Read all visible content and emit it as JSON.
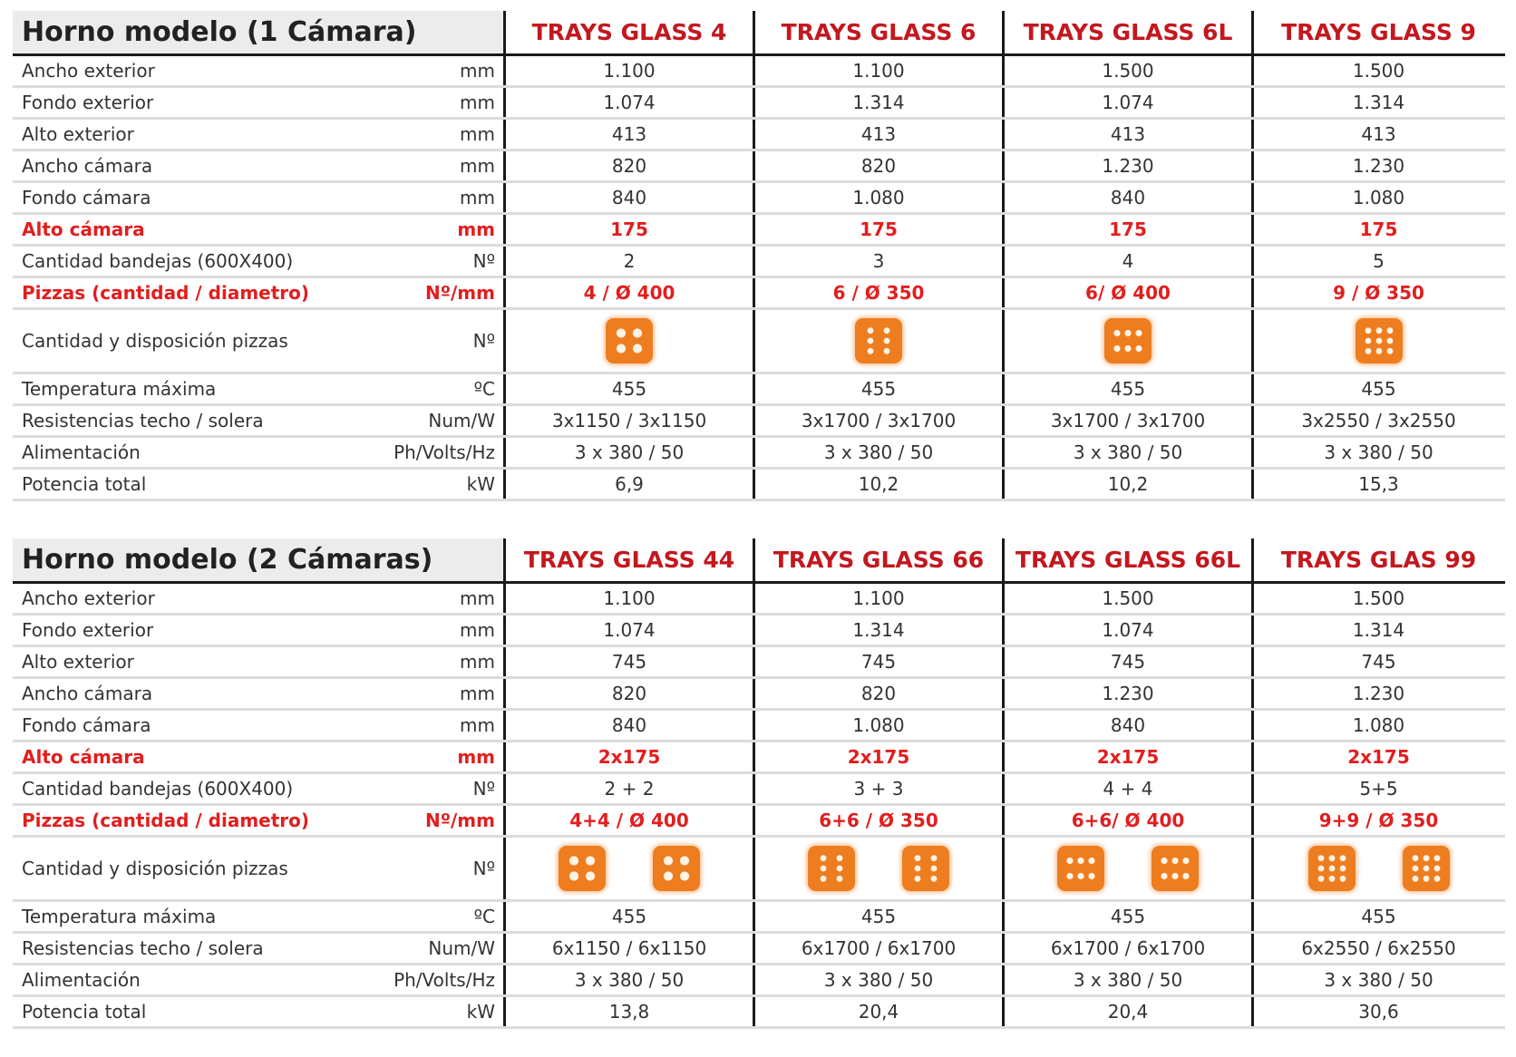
{
  "table1": {
    "title": "Horno modelo (1 Cámara)",
    "models": [
      "TRAYS GLASS 4",
      "TRAYS GLASS 6",
      "TRAYS GLASS 6L",
      "TRAYS GLASS 9"
    ],
    "rows": [
      {
        "label": "Ancho exterior",
        "unit": "mm",
        "values": [
          "1.100",
          "1.100",
          "1.500",
          "1.500"
        ]
      },
      {
        "label": "Fondo exterior",
        "unit": "mm",
        "values": [
          "1.074",
          "1.314",
          "1.074",
          "1.314"
        ]
      },
      {
        "label": "Alto exterior",
        "unit": "mm",
        "values": [
          "413",
          "413",
          "413",
          "413"
        ]
      },
      {
        "label": "Ancho cámara",
        "unit": "mm",
        "values": [
          "820",
          "820",
          "1.230",
          "1.230"
        ]
      },
      {
        "label": "Fondo cámara",
        "unit": "mm",
        "values": [
          "840",
          "1.080",
          "840",
          "1.080"
        ]
      },
      {
        "label": "Alto cámara",
        "unit": "mm",
        "values": [
          "175",
          "175",
          "175",
          "175"
        ]
      },
      {
        "label": "Cantidad bandejas (600X400)",
        "unit": "Nº",
        "values": [
          "2",
          "3",
          "4",
          "5"
        ]
      },
      {
        "label": "Pizzas (cantidad / diametro)",
        "unit": "Nº/mm",
        "values": [
          "4 /  Ø 400",
          "6 /  Ø 350",
          "6/  Ø 400",
          "9 /  Ø 350"
        ]
      },
      {
        "label": "Cantidad y disposición pizzas",
        "unit": "Nº"
      },
      {
        "label": "Temperatura máxima",
        "unit": "ºC",
        "values": [
          "455",
          "455",
          "455",
          "455"
        ]
      },
      {
        "label": "Resistencias techo / solera",
        "unit": "Num/W",
        "values": [
          "3x1150 / 3x1150",
          "3x1700 / 3x1700",
          "3x1700 / 3x1700",
          "3x2550 / 3x2550"
        ]
      },
      {
        "label": "Alimentación",
        "unit": "Ph/Volts/Hz",
        "values": [
          "3 x 380 / 50",
          "3 x 380 / 50",
          "3 x 380 / 50",
          "3 x 380 / 50"
        ]
      },
      {
        "label": "Potencia total",
        "unit": "kW",
        "values": [
          "6,9",
          "10,2",
          "10,2",
          "15,3"
        ]
      }
    ],
    "icons": [
      "pizza-grid-2x2-icon",
      "pizza-grid-2x3-icon",
      "pizza-grid-3x2-icon",
      "pizza-grid-3x3-icon"
    ]
  },
  "table2": {
    "title": "Horno modelo (2 Cámaras)",
    "models": [
      "TRAYS GLASS 44",
      "TRAYS GLASS 66",
      "TRAYS GLASS 66L",
      "TRAYS GLAS 99"
    ],
    "rows": [
      {
        "label": "Ancho exterior",
        "unit": "mm",
        "values": [
          "1.100",
          "1.100",
          "1.500",
          "1.500"
        ]
      },
      {
        "label": "Fondo exterior",
        "unit": "mm",
        "values": [
          "1.074",
          "1.314",
          "1.074",
          "1.314"
        ]
      },
      {
        "label": "Alto exterior",
        "unit": "mm",
        "values": [
          "745",
          "745",
          "745",
          "745"
        ]
      },
      {
        "label": "Ancho cámara",
        "unit": "mm",
        "values": [
          "820",
          "820",
          "1.230",
          "1.230"
        ]
      },
      {
        "label": "Fondo cámara",
        "unit": "mm",
        "values": [
          "840",
          "1.080",
          "840",
          "1.080"
        ]
      },
      {
        "label": "Alto cámara",
        "unit": "mm",
        "values": [
          "2x175",
          "2x175",
          "2x175",
          "2x175"
        ]
      },
      {
        "label": "Cantidad bandejas (600X400)",
        "unit": "Nº",
        "values": [
          "2 + 2",
          "3 + 3",
          "4 + 4",
          "5+5"
        ]
      },
      {
        "label": "Pizzas (cantidad / diametro)",
        "unit": "Nº/mm",
        "values": [
          "4+4 /  Ø 400",
          "6+6 /  Ø 350",
          "6+6/  Ø 400",
          "9+9 /  Ø 350"
        ]
      },
      {
        "label": "Cantidad y disposición pizzas",
        "unit": "Nº"
      },
      {
        "label": "Temperatura máxima",
        "unit": "ºC",
        "values": [
          "455",
          "455",
          "455",
          "455"
        ]
      },
      {
        "label": "Resistencias techo / solera",
        "unit": "Num/W",
        "values": [
          "6x1150 / 6x1150",
          "6x1700 / 6x1700",
          "6x1700 / 6x1700",
          "6x2550 / 6x2550"
        ]
      },
      {
        "label": "Alimentación",
        "unit": "Ph/Volts/Hz",
        "values": [
          "3 x 380 / 50",
          "3 x 380 / 50",
          "3 x 380 / 50",
          "3 x 380 / 50"
        ]
      },
      {
        "label": "Potencia total",
        "unit": "kW",
        "values": [
          "13,8",
          "20,4",
          "20,4",
          "30,6"
        ]
      }
    ],
    "icons": [
      "pizza-grid-2x2-icon",
      "pizza-grid-2x3-icon",
      "pizza-grid-3x2-icon",
      "pizza-grid-3x3-icon"
    ]
  },
  "colors": {
    "accent_red": "#e21e1e",
    "header_red": "#c3181f",
    "icon_orange": "#ee7d1f"
  }
}
